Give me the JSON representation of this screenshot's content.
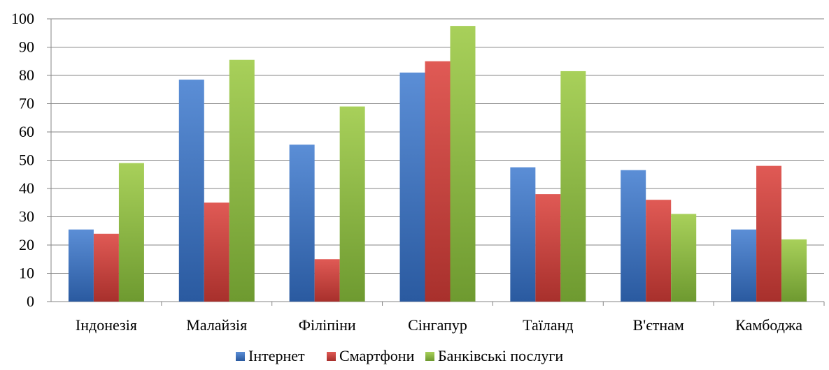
{
  "chart_data": {
    "type": "bar",
    "categories": [
      "Індонезія",
      "Малайзія",
      "Філіпіни",
      "Сінгапур",
      "Таїланд",
      "В'єтнам",
      "Камбоджа"
    ],
    "series": [
      {
        "name": "Інтернет",
        "values": [
          25.5,
          78.5,
          55.5,
          81,
          47.5,
          46.5,
          25.5
        ]
      },
      {
        "name": "Смартфони",
        "values": [
          24,
          35,
          15,
          85,
          38,
          36,
          48
        ]
      },
      {
        "name": "Банківські послуги",
        "values": [
          49,
          85.5,
          69,
          97.5,
          81.5,
          31,
          22
        ]
      }
    ],
    "ylim": [
      0,
      100
    ],
    "yticks": [
      0,
      10,
      20,
      30,
      40,
      50,
      60,
      70,
      80,
      90,
      100
    ],
    "grid": true,
    "legend_position": "bottom",
    "colors": {
      "Інтернет": [
        "#5b8ed6",
        "#2a5aa0"
      ],
      "Смартфони": [
        "#e05a55",
        "#a8302c"
      ],
      "Банківські послуги": [
        "#a8d05a",
        "#6e9a30"
      ]
    }
  }
}
